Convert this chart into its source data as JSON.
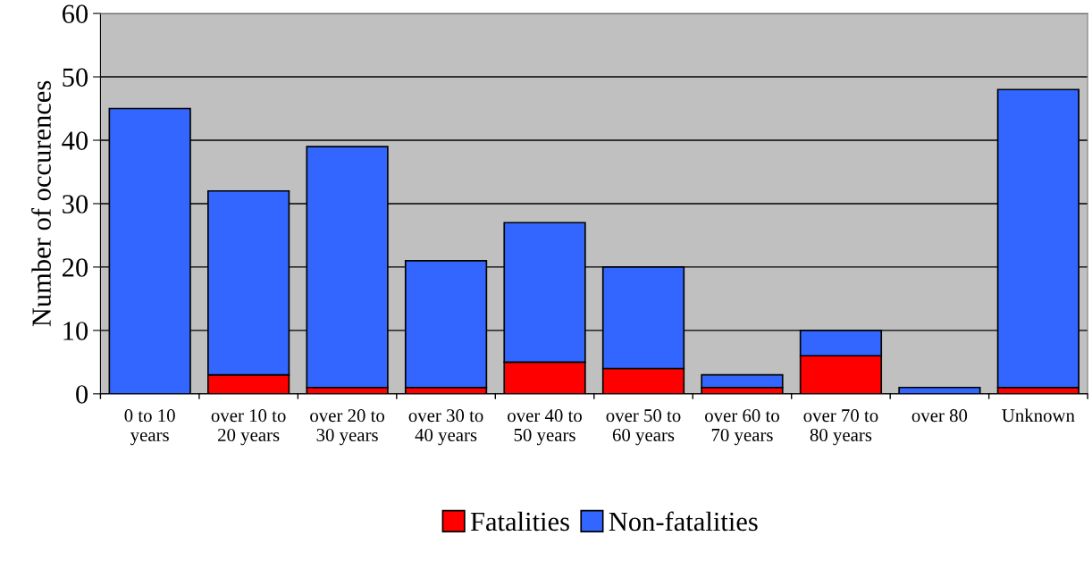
{
  "chart_data": {
    "type": "bar",
    "stacked": true,
    "ylabel": "Number of occurences",
    "categories": [
      "0 to 10\nyears",
      "over 10 to\n20 years",
      "over 20 to\n30 years",
      "over 30 to\n40 years",
      "over 40 to\n50 years",
      "over 50 to\n60 years",
      "over 60 to\n70 years",
      "over 70 to\n80 years",
      "over 80",
      "Unknown"
    ],
    "series": [
      {
        "name": "Fatalities",
        "color": "#ff0000",
        "values": [
          0,
          3,
          1,
          1,
          5,
          4,
          1,
          6,
          0,
          1
        ]
      },
      {
        "name": "Non-fatalities",
        "color": "#3366ff",
        "values": [
          45,
          29,
          38,
          20,
          22,
          16,
          2,
          4,
          1,
          47
        ]
      }
    ],
    "ylim": [
      0,
      60
    ],
    "yticks": [
      0,
      10,
      20,
      30,
      40,
      50,
      60
    ],
    "grid": "y",
    "legend": "bottom"
  }
}
